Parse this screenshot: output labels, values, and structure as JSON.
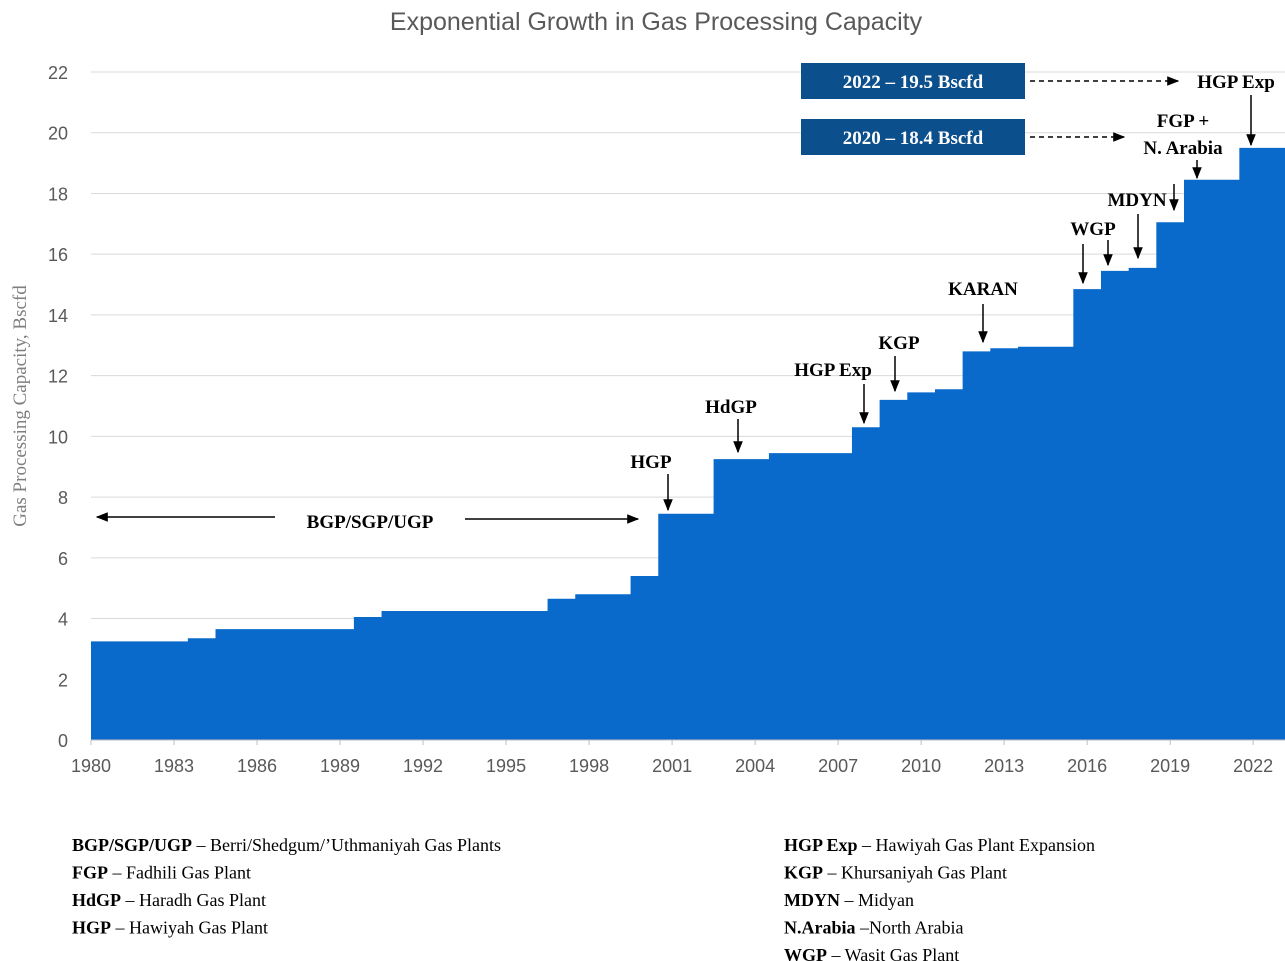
{
  "chart_data": {
    "type": "step-area",
    "title": "Exponential Growth in Gas Processing Capacity",
    "y_label": "Gas Processing Capacity, Bscfd",
    "color": "#0a6acb",
    "grid": true,
    "x": [
      1980,
      1981,
      1982,
      1983,
      1984,
      1985,
      1986,
      1987,
      1988,
      1989,
      1990,
      1991,
      1992,
      1993,
      1994,
      1995,
      1996,
      1997,
      1998,
      1999,
      2000,
      2001,
      2002,
      2003,
      2004,
      2005,
      2006,
      2007,
      2008,
      2009,
      2010,
      2011,
      2012,
      2013,
      2014,
      2015,
      2016,
      2017,
      2018,
      2019,
      2020,
      2021,
      2022
    ],
    "values": [
      3.25,
      3.25,
      3.25,
      3.25,
      3.35,
      3.65,
      3.65,
      3.65,
      3.65,
      3.65,
      4.05,
      4.25,
      4.25,
      4.25,
      4.25,
      4.25,
      4.25,
      4.65,
      4.8,
      4.8,
      5.4,
      7.45,
      7.45,
      9.25,
      9.25,
      9.45,
      9.45,
      9.45,
      10.3,
      11.2,
      11.45,
      11.55,
      12.8,
      12.9,
      12.95,
      12.95,
      14.85,
      15.45,
      15.55,
      17.05,
      18.45,
      18.45,
      19.5
    ],
    "xlim": [
      1980,
      2023.15
    ],
    "ylim": [
      0,
      22
    ],
    "xticks": [
      1980,
      1983,
      1986,
      1989,
      1992,
      1995,
      1998,
      2001,
      2004,
      2007,
      2010,
      2013,
      2016,
      2019,
      2022
    ],
    "yticks": [
      0,
      2,
      4,
      6,
      8,
      10,
      12,
      14,
      16,
      18,
      20,
      22
    ],
    "annotations": [
      "BGP/SGP/UGP",
      "HGP",
      "HdGP",
      "HGP Exp",
      "KGP",
      "KARAN",
      "WGP",
      "MDYN",
      "FGP +",
      "N. Arabia",
      "HGP Exp"
    ],
    "boxes": [
      "2022 – 19.5 Bscfd",
      "2020 – 18.4 Bscfd"
    ]
  },
  "notes": {
    "left": [
      {
        "term": "BGP/SGP/UGP",
        "text": " – Berri/Shedgum/’Uthmaniyah Gas Plants"
      },
      {
        "term": "FGP",
        "text": " – Fadhili Gas Plant"
      },
      {
        "term": "HdGP",
        "text": " – Haradh Gas Plant"
      },
      {
        "term": "HGP",
        "text": " – Hawiyah Gas Plant"
      }
    ],
    "right": [
      {
        "term": "HGP Exp",
        "text": " – Hawiyah Gas Plant Expansion"
      },
      {
        "term": "KGP",
        "text": " – Khursaniyah Gas Plant"
      },
      {
        "term": "MDYN",
        "text": " – Midyan"
      },
      {
        "term": "N.Arabia",
        "text": " –North Arabia"
      },
      {
        "term": "WGP",
        "text": " – Wasit Gas Plant"
      }
    ]
  }
}
